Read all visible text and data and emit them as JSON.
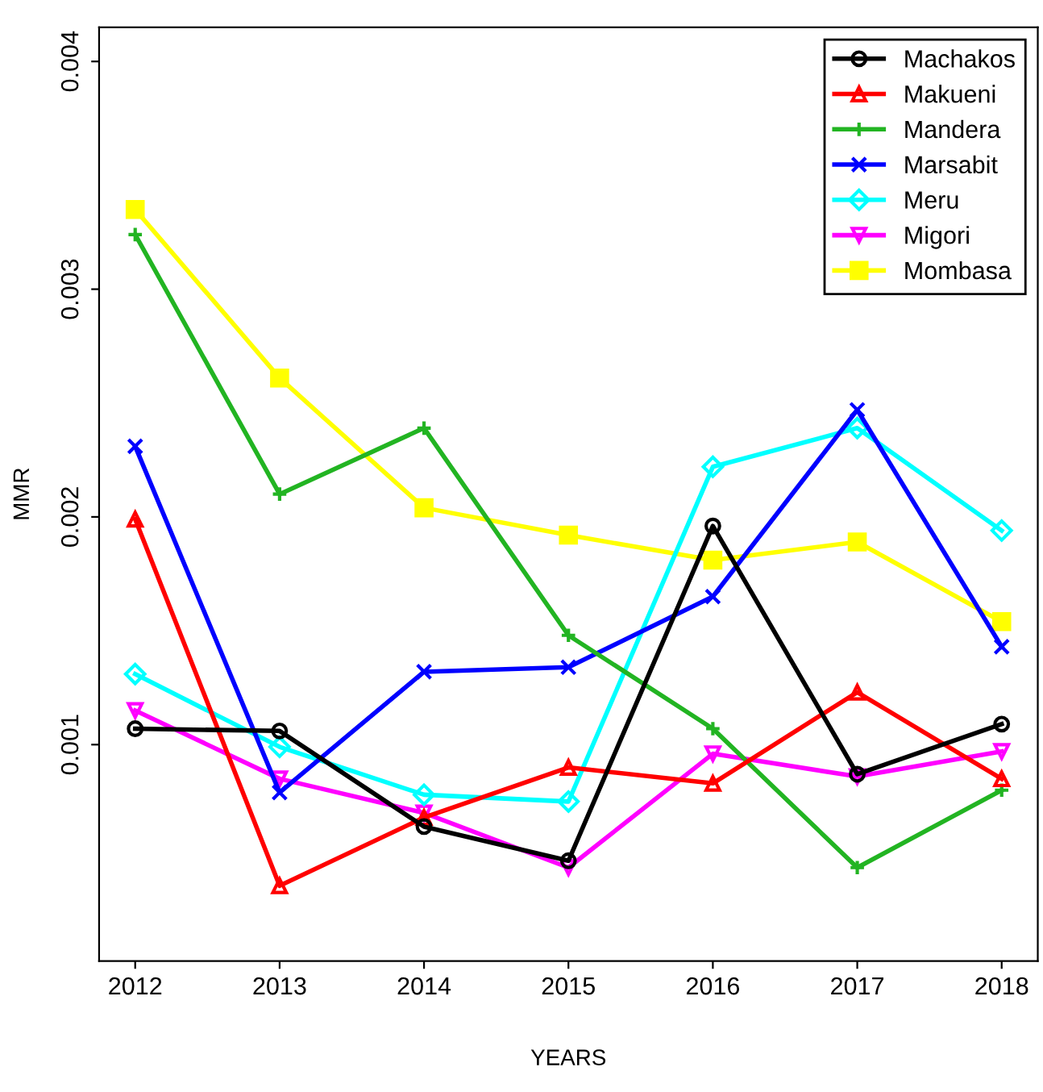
{
  "chart_data": {
    "type": "line",
    "xlabel": "YEARS",
    "ylabel": "MMR",
    "categories": [
      "2012",
      "2013",
      "2014",
      "2015",
      "2016",
      "2017",
      "2018"
    ],
    "ylim": [
      5e-05,
      0.00415
    ],
    "yticks": [
      0.001,
      0.002,
      0.003,
      0.004
    ],
    "grid": false,
    "legend": "top right",
    "line_style": "solid",
    "series": [
      {
        "name": "Machakos",
        "color": "#000000",
        "marker": "circle",
        "values": [
          0.00107,
          0.00106,
          0.00064,
          0.00049,
          0.00196,
          0.00087,
          0.00109
        ]
      },
      {
        "name": "Makueni",
        "color": "#ff0000",
        "marker": "triangle",
        "values": [
          0.00199,
          0.00038,
          0.00068,
          0.0009,
          0.00083,
          0.00123,
          0.00085
        ]
      },
      {
        "name": "Mandera",
        "color": "#22b422",
        "marker": "plus",
        "values": [
          0.00324,
          0.0021,
          0.00239,
          0.00148,
          0.00107,
          0.00046,
          0.0008
        ]
      },
      {
        "name": "Marsabit",
        "color": "#0000ff",
        "marker": "cross",
        "values": [
          0.00231,
          0.00079,
          0.00132,
          0.00134,
          0.00165,
          0.00247,
          0.00143
        ]
      },
      {
        "name": "Meru",
        "color": "#00ffff",
        "marker": "diamond",
        "values": [
          0.00131,
          0.00099,
          0.00078,
          0.00075,
          0.00222,
          0.00239,
          0.00194
        ]
      },
      {
        "name": "Migori",
        "color": "#ff00ff",
        "marker": "triangle_down",
        "values": [
          0.00115,
          0.00085,
          0.0007,
          0.00046,
          0.00096,
          0.00086,
          0.00097
        ]
      },
      {
        "name": "Mombasa",
        "color": "#ffff00",
        "marker": "square",
        "values": [
          0.00335,
          0.00261,
          0.00204,
          0.00192,
          0.00181,
          0.00189,
          0.00154
        ]
      }
    ]
  }
}
